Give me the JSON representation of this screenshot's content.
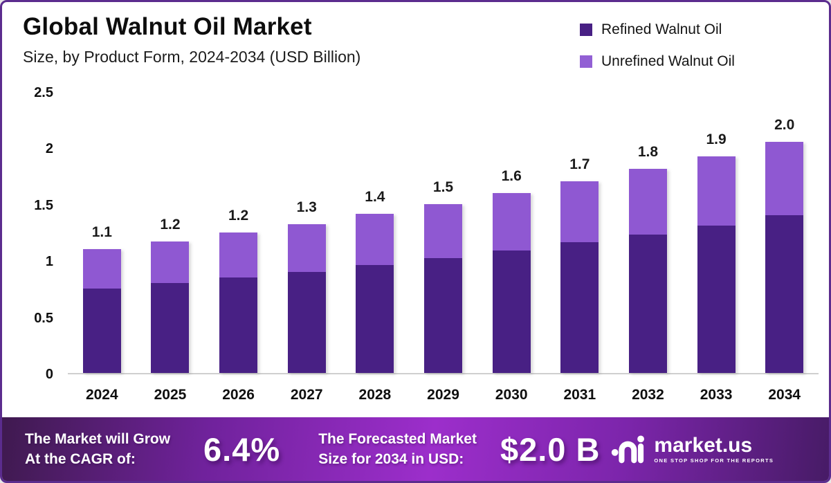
{
  "header": {
    "title": "Global Walnut Oil Market",
    "subtitle": "Size, by Product Form, 2024-2034 (USD Billion)"
  },
  "legend": {
    "items": [
      {
        "label": "Refined Walnut Oil",
        "color": "#482084"
      },
      {
        "label": "Unrefined Walnut Oil",
        "color": "#9260d4"
      }
    ]
  },
  "chart_data": {
    "type": "bar",
    "stacked": true,
    "title": "Global Walnut Oil Market Size, by Product Form, 2024-2034 (USD Billion)",
    "categories": [
      "2024",
      "2025",
      "2026",
      "2027",
      "2028",
      "2029",
      "2030",
      "2031",
      "2032",
      "2033",
      "2034"
    ],
    "series": [
      {
        "name": "Refined Walnut Oil",
        "color": "#482084",
        "values": [
          0.75,
          0.8,
          0.85,
          0.9,
          0.96,
          1.02,
          1.09,
          1.16,
          1.23,
          1.31,
          1.4
        ]
      },
      {
        "name": "Unrefined Walnut Oil",
        "color": "#8f58d2",
        "values": [
          0.35,
          0.37,
          0.4,
          0.42,
          0.45,
          0.48,
          0.51,
          0.54,
          0.58,
          0.61,
          0.65
        ]
      }
    ],
    "totals": [
      1.1,
      1.17,
      1.25,
      1.32,
      1.41,
      1.5,
      1.6,
      1.7,
      1.81,
      1.92,
      2.05
    ],
    "total_labels": [
      "1.1",
      "1.2",
      "1.2",
      "1.3",
      "1.4",
      "1.5",
      "1.6",
      "1.7",
      "1.8",
      "1.9",
      "2.0"
    ],
    "xlabel": "",
    "ylabel": "",
    "ylim": [
      0,
      2.5
    ],
    "yticks": [
      0,
      0.5,
      1,
      1.5,
      2,
      2.5
    ],
    "ytick_labels": [
      "0",
      "0.5",
      "1",
      "1.5",
      "2",
      "2.5"
    ],
    "grid": false,
    "legend_position": "top-right"
  },
  "footer": {
    "growth_label_line1": "The Market will Grow",
    "growth_label_line2": "At the CAGR of:",
    "cagr_value": "6.4%",
    "forecast_label_line1": "The Forecasted Market",
    "forecast_label_line2": "Size for 2034 in USD:",
    "forecast_value": "$2.0 B",
    "brand_name": "market.us",
    "brand_tagline": "ONE STOP SHOP FOR THE REPORTS"
  },
  "colors": {
    "frame_border": "#5b2c8e",
    "axis_line": "#cfcfcf",
    "refined": "#482084",
    "unrefined": "#8f58d2"
  }
}
